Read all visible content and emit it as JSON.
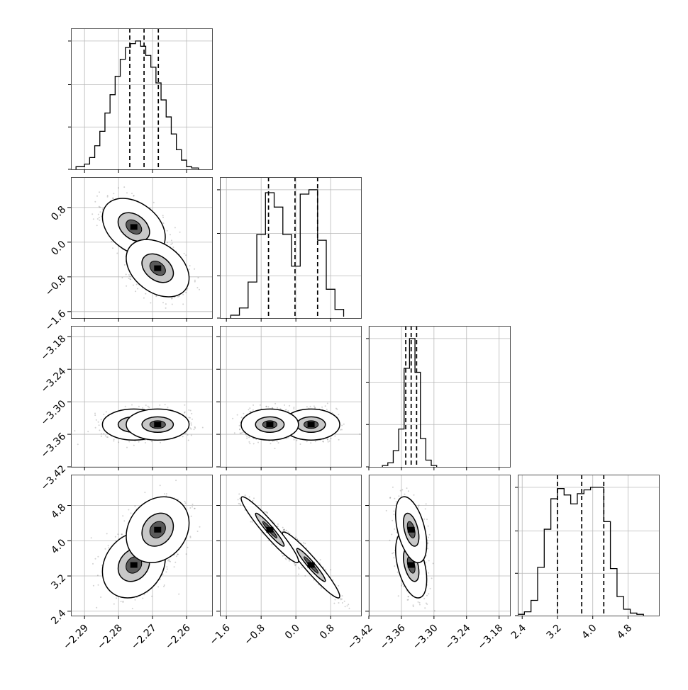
{
  "chart_data": {
    "type": "corner",
    "dimensions": [
      {
        "ticks": [
          -2.29,
          -2.28,
          -2.27,
          -2.26
        ],
        "tick_labels": [
          "−2.29",
          "−2.28",
          "−2.27",
          "−2.26"
        ],
        "range": [
          -2.294,
          -2.2525
        ]
      },
      {
        "ticks": [
          -1.6,
          -0.8,
          0.0,
          0.8
        ],
        "tick_labels": [
          "−1.6",
          "−0.8",
          "0.0",
          "0.8"
        ],
        "range": [
          -1.75,
          1.5
        ]
      },
      {
        "ticks": [
          -3.42,
          -3.36,
          -3.3,
          -3.24,
          -3.18
        ],
        "tick_labels": [
          "−3.42",
          "−3.36",
          "−3.30",
          "−3.24",
          "−3.18"
        ],
        "range": [
          -3.42,
          -3.16
        ]
      },
      {
        "ticks": [
          2.4,
          3.2,
          4.0,
          4.8
        ],
        "tick_labels": [
          "2.4",
          "3.2",
          "4.0",
          "4.8"
        ],
        "range": [
          2.3,
          5.5
        ]
      }
    ],
    "quantiles": [
      [
        -2.2767,
        -2.2725,
        -2.2683
      ],
      [
        -0.63,
        -0.02,
        0.5
      ],
      [
        -3.352,
        -3.342,
        -3.332
      ],
      [
        3.2,
        3.75,
        4.25
      ]
    ],
    "histograms": [
      {
        "edges": [
          -2.2925,
          -2.29,
          -2.2885,
          -2.287,
          -2.2855,
          -2.284,
          -2.2825,
          -2.281,
          -2.2795,
          -2.278,
          -2.2765,
          -2.275,
          -2.2735,
          -2.272,
          -2.2705,
          -2.269,
          -2.2675,
          -2.266,
          -2.2645,
          -2.263,
          -2.2615,
          -2.26,
          -2.2585,
          -2.2565
        ],
        "values": [
          0.02,
          0.04,
          0.09,
          0.18,
          0.29,
          0.43,
          0.57,
          0.71,
          0.84,
          0.93,
          0.96,
          0.98,
          0.94,
          0.87,
          0.78,
          0.66,
          0.53,
          0.4,
          0.27,
          0.15,
          0.07,
          0.02,
          0.01
        ]
      },
      {
        "edges": [
          -1.5,
          -1.3,
          -1.1,
          -0.9,
          -0.7,
          -0.5,
          -0.3,
          -0.1,
          0.1,
          0.3,
          0.5,
          0.7,
          0.9,
          1.1
        ],
        "values": [
          0.02,
          0.07,
          0.25,
          0.58,
          0.87,
          0.77,
          0.58,
          0.36,
          0.86,
          0.89,
          0.54,
          0.2,
          0.06,
          0.01
        ]
      },
      {
        "edges": [
          -3.395,
          -3.385,
          -3.375,
          -3.365,
          -3.355,
          -3.345,
          -3.335,
          -3.325,
          -3.315,
          -3.305,
          -3.295
        ],
        "values": [
          0.01,
          0.03,
          0.12,
          0.28,
          0.73,
          0.95,
          0.7,
          0.21,
          0.05,
          0.01
        ]
      },
      {
        "edges": [
          2.3,
          2.45,
          2.6,
          2.75,
          2.9,
          3.05,
          3.2,
          3.35,
          3.5,
          3.65,
          3.8,
          3.95,
          4.1,
          4.25,
          4.4,
          4.55,
          4.7,
          4.85,
          5.0,
          5.15
        ],
        "values": [
          0.01,
          0.03,
          0.12,
          0.38,
          0.68,
          0.92,
          1.0,
          0.95,
          0.88,
          0.96,
          0.99,
          1.01,
          1.01,
          0.74,
          0.37,
          0.15,
          0.05,
          0.02,
          0.01
        ]
      }
    ],
    "clusters": [
      {
        "mean": [
          -2.2755,
          0.35,
          -3.342,
          3.45
        ],
        "sd": [
          0.0042,
          0.3,
          0.013,
          0.34
        ],
        "corr": [
          [
            0,
            1,
            -0.35
          ],
          [
            0,
            3,
            0.2
          ],
          [
            1,
            3,
            -0.95
          ],
          [
            2,
            3,
            -0.45
          ]
        ]
      },
      {
        "mean": [
          -2.2685,
          -0.6,
          -3.342,
          4.25
        ],
        "sd": [
          0.0042,
          0.3,
          0.013,
          0.34
        ],
        "corr": [
          [
            0,
            1,
            -0.35
          ],
          [
            0,
            3,
            0.2
          ],
          [
            1,
            3,
            -0.95
          ],
          [
            2,
            3,
            -0.45
          ]
        ]
      }
    ],
    "contour_levels": [
      1.1,
      2.2
    ],
    "grid": true,
    "title": "",
    "xlabel": "",
    "ylabel": ""
  }
}
